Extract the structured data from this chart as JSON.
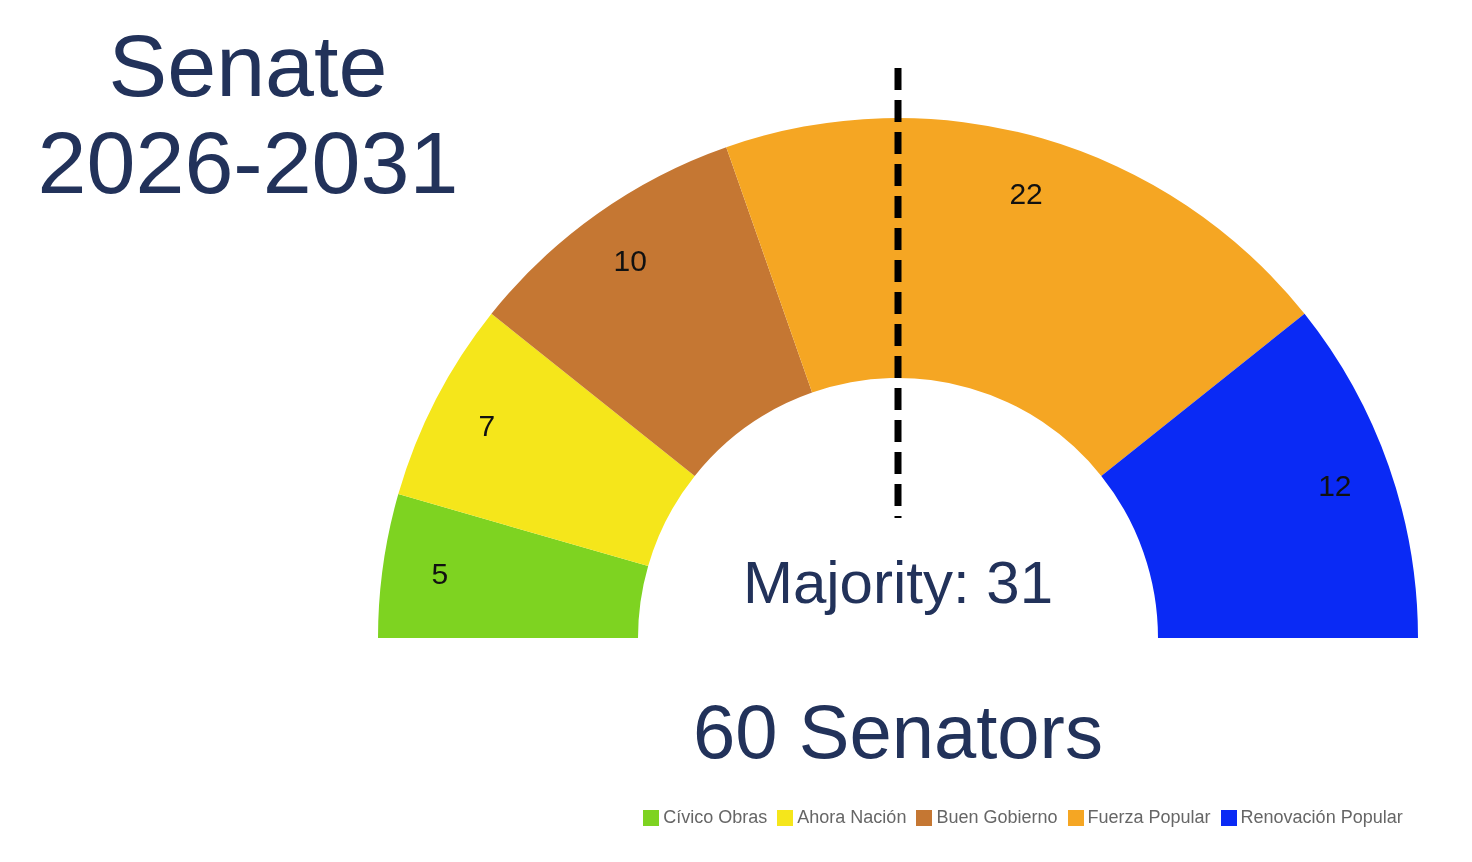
{
  "chart_data": {
    "type": "donut",
    "title": "Senate 2026-2031",
    "categories": [
      "Cívico Obras",
      "Ahora Nación",
      "Buen Gobierno",
      "Fuerza Popular",
      "Renovación Popular"
    ],
    "values": [
      5,
      7,
      10,
      22,
      12
    ],
    "colors": [
      "#7ed321",
      "#f5e61b",
      "#c57733",
      "#f5a623",
      "#0a2af5"
    ],
    "data_labels": true,
    "legend": "bottom",
    "annotations": [
      "Majority: 31",
      "60 Senators"
    ]
  }
}
